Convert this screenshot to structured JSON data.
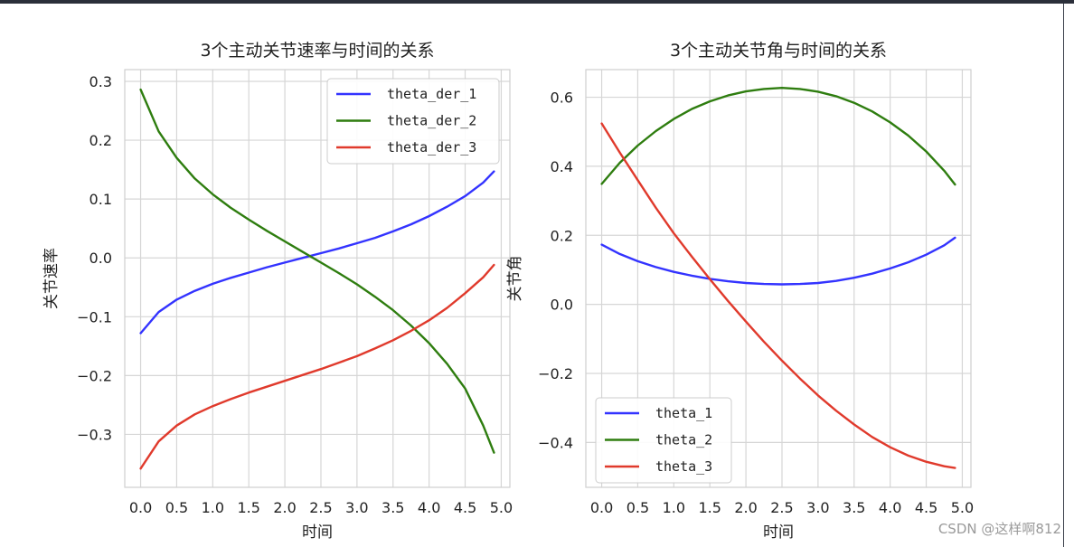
{
  "watermark": "CSDN @这样啊812",
  "chart_data": [
    {
      "type": "line",
      "title": "3个主动关节速率与时间的关系",
      "xlabel": "时间",
      "ylabel": "关节速率",
      "xlim": [
        -0.22,
        5.12
      ],
      "ylim": [
        -0.39,
        0.32
      ],
      "xticks": [
        0.0,
        0.5,
        1.0,
        1.5,
        2.0,
        2.5,
        3.0,
        3.5,
        4.0,
        4.5,
        5.0
      ],
      "xtick_labels": [
        "0.0",
        "0.5",
        "1.0",
        "1.5",
        "2.0",
        "2.5",
        "3.0",
        "3.5",
        "4.0",
        "4.5",
        "5.0"
      ],
      "yticks": [
        -0.3,
        -0.2,
        -0.1,
        0.0,
        0.1,
        0.2,
        0.3
      ],
      "ytick_labels": [
        "−0.3",
        "−0.2",
        "−0.1",
        "0.0",
        "0.1",
        "0.2",
        "0.3"
      ],
      "grid": true,
      "legend_position": "top-right",
      "x": [
        0.0,
        0.25,
        0.5,
        0.75,
        1.0,
        1.25,
        1.5,
        1.75,
        2.0,
        2.25,
        2.5,
        2.75,
        3.0,
        3.25,
        3.5,
        3.75,
        4.0,
        4.25,
        4.5,
        4.75,
        4.9
      ],
      "series": [
        {
          "name": "theta_der_1",
          "color": "#3333ff",
          "values": [
            -0.128,
            -0.092,
            -0.071,
            -0.056,
            -0.044,
            -0.034,
            -0.025,
            -0.016,
            -0.008,
            0.0,
            0.008,
            0.016,
            0.025,
            0.034,
            0.045,
            0.057,
            0.071,
            0.087,
            0.105,
            0.128,
            0.147
          ]
        },
        {
          "name": "theta_der_2",
          "color": "#2e7d0f",
          "values": [
            0.286,
            0.215,
            0.17,
            0.135,
            0.108,
            0.085,
            0.065,
            0.046,
            0.028,
            0.01,
            -0.008,
            -0.026,
            -0.045,
            -0.066,
            -0.089,
            -0.115,
            -0.145,
            -0.18,
            -0.222,
            -0.285,
            -0.331
          ]
        },
        {
          "name": "theta_der_3",
          "color": "#e03a2c",
          "values": [
            -0.358,
            -0.312,
            -0.285,
            -0.266,
            -0.252,
            -0.24,
            -0.229,
            -0.219,
            -0.209,
            -0.199,
            -0.189,
            -0.178,
            -0.167,
            -0.154,
            -0.14,
            -0.124,
            -0.106,
            -0.085,
            -0.06,
            -0.033,
            -0.012
          ]
        }
      ]
    },
    {
      "type": "line",
      "title": "3个主动关节角与时间的关系",
      "xlabel": "时间",
      "ylabel": "关节角",
      "xlim": [
        -0.22,
        5.12
      ],
      "ylim": [
        -0.53,
        0.68
      ],
      "xticks": [
        0.0,
        0.5,
        1.0,
        1.5,
        2.0,
        2.5,
        3.0,
        3.5,
        4.0,
        4.5,
        5.0
      ],
      "xtick_labels": [
        "0.0",
        "0.5",
        "1.0",
        "1.5",
        "2.0",
        "2.5",
        "3.0",
        "3.5",
        "4.0",
        "4.5",
        "5.0"
      ],
      "yticks": [
        -0.4,
        -0.2,
        0.0,
        0.2,
        0.4,
        0.6
      ],
      "ytick_labels": [
        "−0.4",
        "−0.2",
        "0.0",
        "0.2",
        "0.4",
        "0.6"
      ],
      "grid": true,
      "legend_position": "bottom-left",
      "x": [
        0.0,
        0.25,
        0.5,
        0.75,
        1.0,
        1.25,
        1.5,
        1.75,
        2.0,
        2.25,
        2.5,
        2.75,
        3.0,
        3.25,
        3.5,
        3.75,
        4.0,
        4.25,
        4.5,
        4.75,
        4.9
      ],
      "series": [
        {
          "name": "theta_1",
          "color": "#3333ff",
          "values": [
            0.173,
            0.146,
            0.125,
            0.108,
            0.094,
            0.083,
            0.074,
            0.067,
            0.062,
            0.059,
            0.058,
            0.059,
            0.062,
            0.068,
            0.077,
            0.089,
            0.104,
            0.122,
            0.144,
            0.171,
            0.193
          ]
        },
        {
          "name": "theta_2",
          "color": "#2e7d0f",
          "values": [
            0.349,
            0.41,
            0.46,
            0.502,
            0.537,
            0.566,
            0.588,
            0.605,
            0.617,
            0.624,
            0.627,
            0.624,
            0.616,
            0.603,
            0.584,
            0.559,
            0.527,
            0.489,
            0.443,
            0.387,
            0.347
          ]
        },
        {
          "name": "theta_3",
          "color": "#e03a2c",
          "values": [
            0.524,
            0.44,
            0.36,
            0.28,
            0.206,
            0.138,
            0.073,
            0.01,
            -0.05,
            -0.108,
            -0.163,
            -0.215,
            -0.264,
            -0.308,
            -0.348,
            -0.384,
            -0.414,
            -0.438,
            -0.456,
            -0.469,
            -0.474
          ]
        }
      ]
    }
  ]
}
